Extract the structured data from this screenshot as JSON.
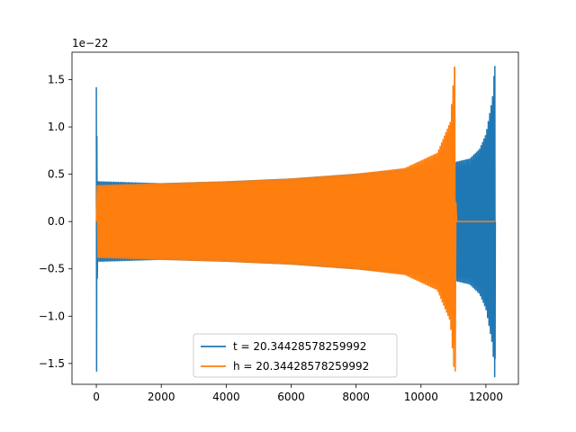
{
  "chart_data": {
    "type": "line",
    "title": "",
    "xlabel": "",
    "ylabel": "",
    "y_offset_label": "1e−22",
    "xlim": [
      -750,
      13000
    ],
    "ylim": [
      -1.72,
      1.79
    ],
    "x_ticks": [
      0,
      2000,
      4000,
      6000,
      8000,
      10000,
      12000
    ],
    "x_tick_labels": [
      "0",
      "2000",
      "4000",
      "6000",
      "8000",
      "10000",
      "12000"
    ],
    "y_ticks": [
      -1.5,
      -1.0,
      -0.5,
      0.0,
      0.5,
      1.0,
      1.5
    ],
    "y_tick_labels": [
      "−1.5",
      "−1.0",
      "−0.5",
      "0.0",
      "0.5",
      "1.0",
      "1.5"
    ],
    "grid": false,
    "legend_position": "bottom-center",
    "series": [
      {
        "name": "t = 20.34428578259992",
        "color": "#1f77b4",
        "points": [
          [
            0,
            1.42
          ],
          [
            10,
            -1.58
          ],
          [
            100,
            0.42
          ],
          [
            2000,
            -0.4
          ],
          [
            4000,
            0.42
          ],
          [
            6000,
            -0.45
          ],
          [
            8000,
            0.5
          ],
          [
            10000,
            -0.56
          ],
          [
            11000,
            0.62
          ],
          [
            11500,
            -0.66
          ],
          [
            11800,
            0.76
          ],
          [
            12000,
            -0.92
          ],
          [
            12200,
            1.3
          ],
          [
            12270,
            1.64
          ],
          [
            12280,
            -1.45
          ],
          [
            12290,
            0.0
          ]
        ]
      },
      {
        "name": "h = 20.34428578259992",
        "color": "#ff7f0e",
        "points": [
          [
            0,
            0.0
          ],
          [
            30,
            0.38
          ],
          [
            60,
            -0.38
          ],
          [
            2000,
            0.4
          ],
          [
            4000,
            -0.42
          ],
          [
            6000,
            0.45
          ],
          [
            8000,
            -0.5
          ],
          [
            9500,
            0.56
          ],
          [
            10500,
            -0.72
          ],
          [
            10900,
            1.05
          ],
          [
            11030,
            1.63
          ],
          [
            11060,
            -1.58
          ],
          [
            11100,
            0.0
          ],
          [
            12290,
            0.0
          ]
        ]
      }
    ]
  }
}
